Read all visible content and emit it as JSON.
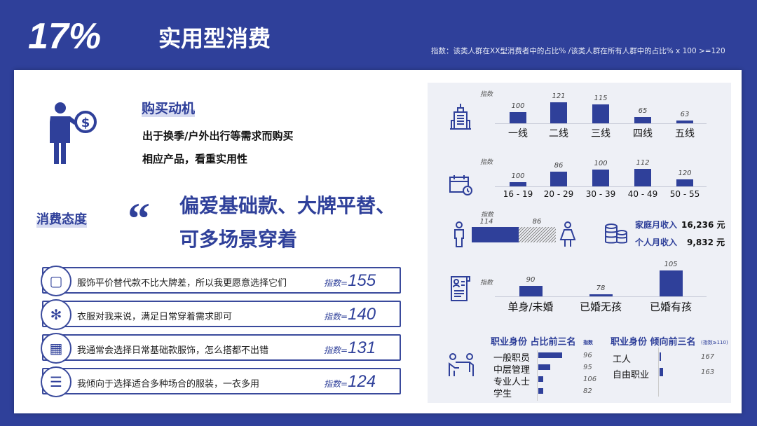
{
  "header": {
    "percent": "17%",
    "title": "实用型消费",
    "note": "指数：该类人群在XX型消费者中的占比% /该类人群在所有人群中的占比% x 100 >=120"
  },
  "motivation": {
    "heading": "购买动机",
    "line1": "出于换季/户外出行等需求而购买",
    "line2": "相应产品，看重实用性"
  },
  "attitude": {
    "heading": "消费态度",
    "quote_line1": "偏爱基础款、大牌平替、",
    "quote_line2": "可多场景穿着"
  },
  "statements": [
    {
      "icon": "box-icon",
      "text": "服饰平价替代款不比大牌差，所以我更愿意选择它们",
      "index_label": "指数=",
      "index": "155"
    },
    {
      "icon": "gears-icon",
      "text": "衣服对我来说，满足日常穿着需求即可",
      "index_label": "指数=",
      "index": "140"
    },
    {
      "icon": "binary-icon",
      "text": "我通常会选择日常基础款服饰，怎么搭都不出错",
      "index_label": "指数=",
      "index": "131"
    },
    {
      "icon": "database-network-icon",
      "text": "我倾向于选择适合多种场合的服装，一衣多用",
      "index_label": "指数=",
      "index": "124"
    }
  ],
  "chart_data": [
    {
      "type": "bar",
      "ylabel": "指数",
      "categories": [
        "一线",
        "二线",
        "三线",
        "四线",
        "五线"
      ],
      "values": [
        100,
        121,
        115,
        65,
        63
      ]
    },
    {
      "type": "bar",
      "ylabel": "指数",
      "categories": [
        "16 - 19",
        "20 - 29",
        "30 - 39",
        "40 - 49",
        "50 - 55"
      ],
      "values": [
        100,
        86,
        100,
        112,
        120
      ]
    },
    {
      "type": "bar",
      "ylabel": "指数",
      "categories": [
        "male",
        "female"
      ],
      "values": [
        114,
        86
      ]
    },
    {
      "type": "bar",
      "ylabel": "指数",
      "categories": [
        "单身/未婚",
        "已婚无孩",
        "已婚有孩"
      ],
      "values": [
        90,
        78,
        105
      ]
    },
    {
      "type": "bar",
      "title": "职业身份 占比前三名",
      "ylabel": "指数",
      "categories": [
        "一般职员",
        "中层管理",
        "专业人士",
        "学生"
      ],
      "values": [
        96,
        95,
        106,
        82
      ]
    },
    {
      "type": "bar",
      "title": "职业身份 倾向前三名",
      "ylabel": "(指数≥110)",
      "categories": [
        "工人",
        "自由职业"
      ],
      "values": [
        167,
        163
      ]
    }
  ],
  "income": {
    "family_label": "家庭月收入",
    "family_value": "16,236 元",
    "personal_label": "个人月收入",
    "personal_value": "9,832 元"
  },
  "colors": {
    "brand": "#2f409a",
    "panel": "#eef0f6"
  }
}
